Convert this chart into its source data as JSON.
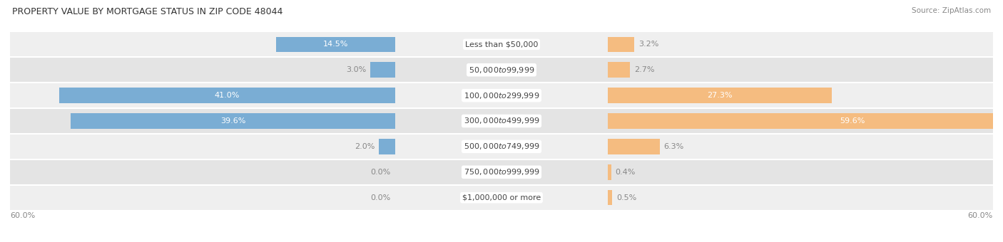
{
  "title": "PROPERTY VALUE BY MORTGAGE STATUS IN ZIP CODE 48044",
  "source": "Source: ZipAtlas.com",
  "categories": [
    "Less than $50,000",
    "$50,000 to $99,999",
    "$100,000 to $299,999",
    "$300,000 to $499,999",
    "$500,000 to $749,999",
    "$750,000 to $999,999",
    "$1,000,000 or more"
  ],
  "without_mortgage": [
    14.5,
    3.0,
    41.0,
    39.6,
    2.0,
    0.0,
    0.0
  ],
  "with_mortgage": [
    3.2,
    2.7,
    27.3,
    59.6,
    6.3,
    0.4,
    0.5
  ],
  "color_without": "#7aadd4",
  "color_with": "#f5bc80",
  "xlim": 60.0,
  "title_fontsize": 9,
  "label_fontsize": 8,
  "tick_fontsize": 8,
  "source_fontsize": 7.5,
  "row_colors": [
    "#efefef",
    "#e4e4e4"
  ],
  "label_box_color": "#ffffff",
  "value_label_inside_color": "#ffffff",
  "value_label_outside_color": "#888888"
}
